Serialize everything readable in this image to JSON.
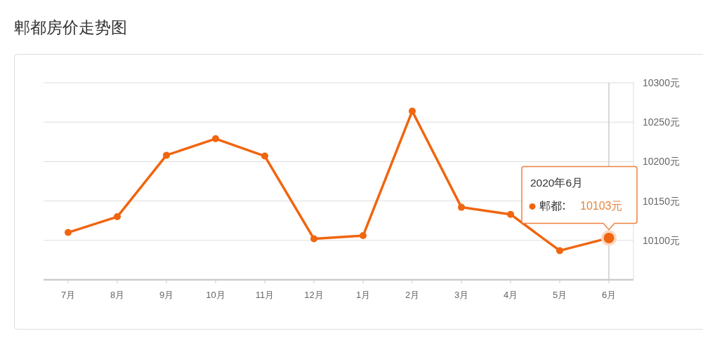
{
  "chart_data": {
    "type": "line",
    "title": "郫都房价走势图",
    "categories": [
      "7月",
      "8月",
      "9月",
      "10月",
      "11月",
      "12月",
      "1月",
      "2月",
      "3月",
      "4月",
      "5月",
      "6月"
    ],
    "series": [
      {
        "name": "郫都",
        "color": "#f0650f",
        "values": [
          10110,
          10130,
          10208,
          10229,
          10207,
          10102,
          10106,
          10264,
          10142,
          10133,
          10087,
          10103
        ],
        "value_labels": [
          null,
          null,
          null,
          null,
          null,
          null,
          null,
          null,
          null,
          null,
          null,
          "10103元"
        ]
      }
    ],
    "ylim": [
      10050,
      10300
    ],
    "yticks": [
      {
        "value": 10100,
        "label": "10100元"
      },
      {
        "value": 10150,
        "label": "10150元"
      },
      {
        "value": 10200,
        "label": "10200元"
      },
      {
        "value": 10250,
        "label": "10250元"
      },
      {
        "value": 10300,
        "label": "10300元"
      }
    ],
    "grid": "y",
    "marker": "circle",
    "ref_lines": [
      {
        "axis": "x",
        "value": "6月",
        "color": "#cccccc"
      }
    ],
    "annotations": [
      "2020年6月"
    ]
  }
}
